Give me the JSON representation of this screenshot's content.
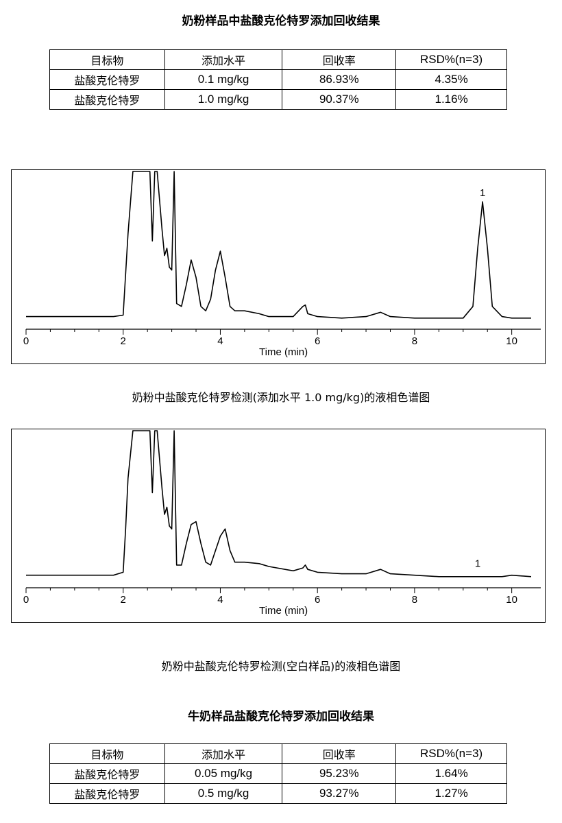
{
  "tables": [
    {
      "title": "奶粉样品中盐酸克伦特罗添加回收结果",
      "headers": [
        "目标物",
        "添加水平",
        "回收率",
        "RSD%(n=3)"
      ],
      "rows": [
        [
          "盐酸克伦特罗",
          "0.1 mg/kg",
          "86.93%",
          "4.35%"
        ],
        [
          "盐酸克伦特罗",
          "1.0 mg/kg",
          "90.37%",
          "1.16%"
        ]
      ]
    },
    {
      "title": "牛奶样品盐酸克伦特罗添加回收结果",
      "headers": [
        "目标物",
        "添加水平",
        "回收率",
        "RSD%(n=3)"
      ],
      "rows": [
        [
          "盐酸克伦特罗",
          "0.05 mg/kg",
          "95.23%",
          "1.64%"
        ],
        [
          "盐酸克伦特罗",
          "0.5 mg/kg",
          "93.27%",
          "1.27%"
        ]
      ]
    }
  ],
  "chart_data": [
    {
      "type": "line",
      "caption": "奶粉中盐酸克伦特罗检测(添加水平 1.0 mg/kg)的液相色谱图",
      "xlabel": "Time (min)",
      "ylabel": "",
      "xlim": [
        0,
        10.4
      ],
      "xticks": [
        0,
        2,
        4,
        6,
        8,
        10
      ],
      "grid": false,
      "x": [
        0,
        1.8,
        2.0,
        2.1,
        2.2,
        2.4,
        2.55,
        2.6,
        2.65,
        2.7,
        2.8,
        2.85,
        2.9,
        2.95,
        3.0,
        3.05,
        3.1,
        3.2,
        3.3,
        3.4,
        3.5,
        3.6,
        3.7,
        3.8,
        3.9,
        4.0,
        4.1,
        4.2,
        4.3,
        4.5,
        4.8,
        5.0,
        5.5,
        5.7,
        5.75,
        5.8,
        6.0,
        6.5,
        7.0,
        7.3,
        7.5,
        8.0,
        8.5,
        9.0,
        9.2,
        9.3,
        9.4,
        9.5,
        9.6,
        9.8,
        10.0,
        10.4
      ],
      "y": [
        0.03,
        0.03,
        0.04,
        0.6,
        1.2,
        1.2,
        1.2,
        0.55,
        1.2,
        1.2,
        0.63,
        0.45,
        0.5,
        0.37,
        0.35,
        1.2,
        0.12,
        0.1,
        0.25,
        0.42,
        0.3,
        0.1,
        0.07,
        0.15,
        0.35,
        0.48,
        0.3,
        0.1,
        0.07,
        0.07,
        0.05,
        0.03,
        0.03,
        0.1,
        0.11,
        0.05,
        0.03,
        0.02,
        0.03,
        0.06,
        0.03,
        0.02,
        0.02,
        0.02,
        0.1,
        0.5,
        0.82,
        0.5,
        0.1,
        0.03,
        0.02,
        0.02
      ],
      "annotations": [
        {
          "text": "1",
          "x": 9.4,
          "y": 0.82
        }
      ]
    },
    {
      "type": "line",
      "caption": "奶粉中盐酸克伦特罗检测(空白样品)的液相色谱图",
      "xlabel": "Time (min)",
      "ylabel": "",
      "xlim": [
        0,
        10.4
      ],
      "xticks": [
        0,
        2,
        4,
        6,
        8,
        10
      ],
      "grid": false,
      "x": [
        0,
        1.8,
        2.0,
        2.05,
        2.1,
        2.2,
        2.4,
        2.55,
        2.6,
        2.65,
        2.7,
        2.8,
        2.85,
        2.9,
        2.95,
        3.0,
        3.05,
        3.1,
        3.2,
        3.3,
        3.4,
        3.5,
        3.6,
        3.7,
        3.8,
        3.9,
        4.0,
        4.1,
        4.2,
        4.3,
        4.5,
        4.8,
        5.0,
        5.5,
        5.7,
        5.75,
        5.8,
        6.0,
        6.5,
        7.0,
        7.3,
        7.5,
        8.0,
        8.5,
        9.0,
        9.4,
        9.8,
        10.0,
        10.4
      ],
      "y": [
        0.03,
        0.03,
        0.05,
        0.35,
        0.7,
        1.2,
        1.2,
        1.2,
        0.6,
        1.2,
        1.2,
        0.63,
        0.45,
        0.5,
        0.37,
        0.35,
        1.2,
        0.1,
        0.1,
        0.25,
        0.38,
        0.4,
        0.25,
        0.12,
        0.1,
        0.2,
        0.3,
        0.35,
        0.2,
        0.12,
        0.12,
        0.11,
        0.09,
        0.06,
        0.08,
        0.1,
        0.07,
        0.05,
        0.04,
        0.04,
        0.07,
        0.04,
        0.03,
        0.02,
        0.02,
        0.02,
        0.02,
        0.03,
        0.02
      ],
      "annotations": [
        {
          "text": "1",
          "x": 9.3,
          "y": 0.05
        }
      ]
    }
  ]
}
